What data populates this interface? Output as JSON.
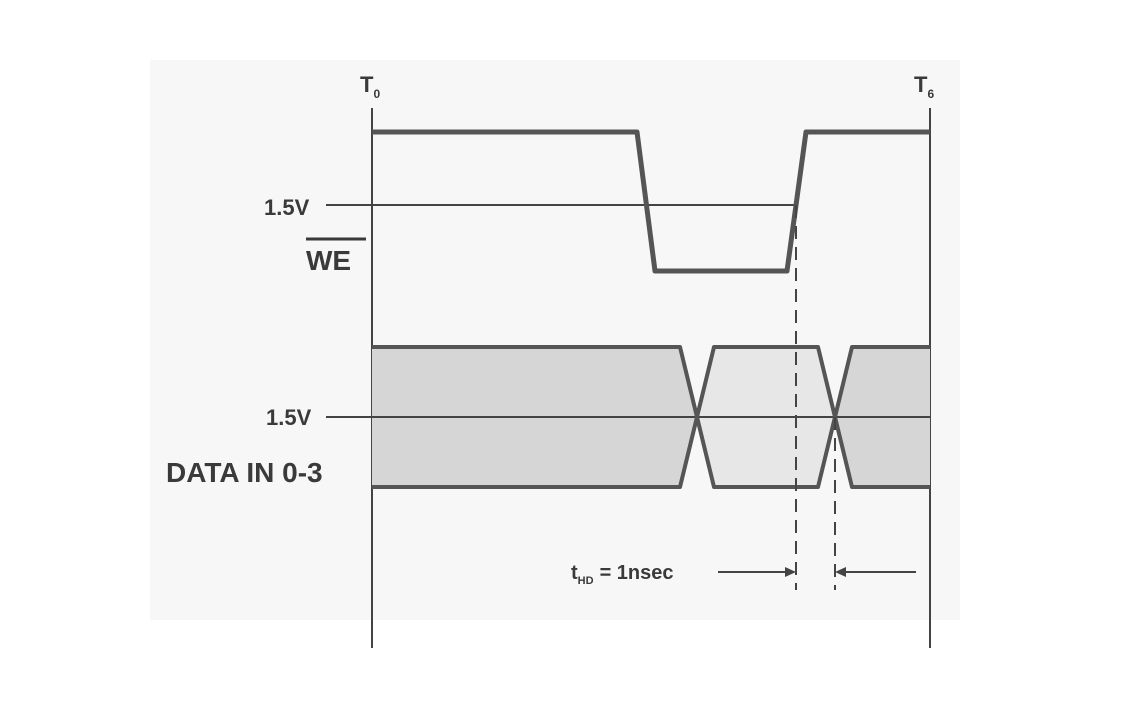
{
  "timing_diagram": {
    "markers": {
      "start": {
        "main": "T",
        "sub": "0"
      },
      "end": {
        "main": "T",
        "sub": "6"
      }
    },
    "we_signal": {
      "name": "WE",
      "threshold": "1.5V",
      "active_low": true
    },
    "data_signal": {
      "name": "DATA IN 0-3",
      "threshold": "1.5V"
    },
    "hold_time": {
      "symbol": "t",
      "subscript": "HD",
      "value": "= 1nsec"
    }
  },
  "colors": {
    "line": "#444444",
    "signal": "#555555",
    "data_fill": "#d6d6d6",
    "window_fill": "#e7e7e7"
  }
}
